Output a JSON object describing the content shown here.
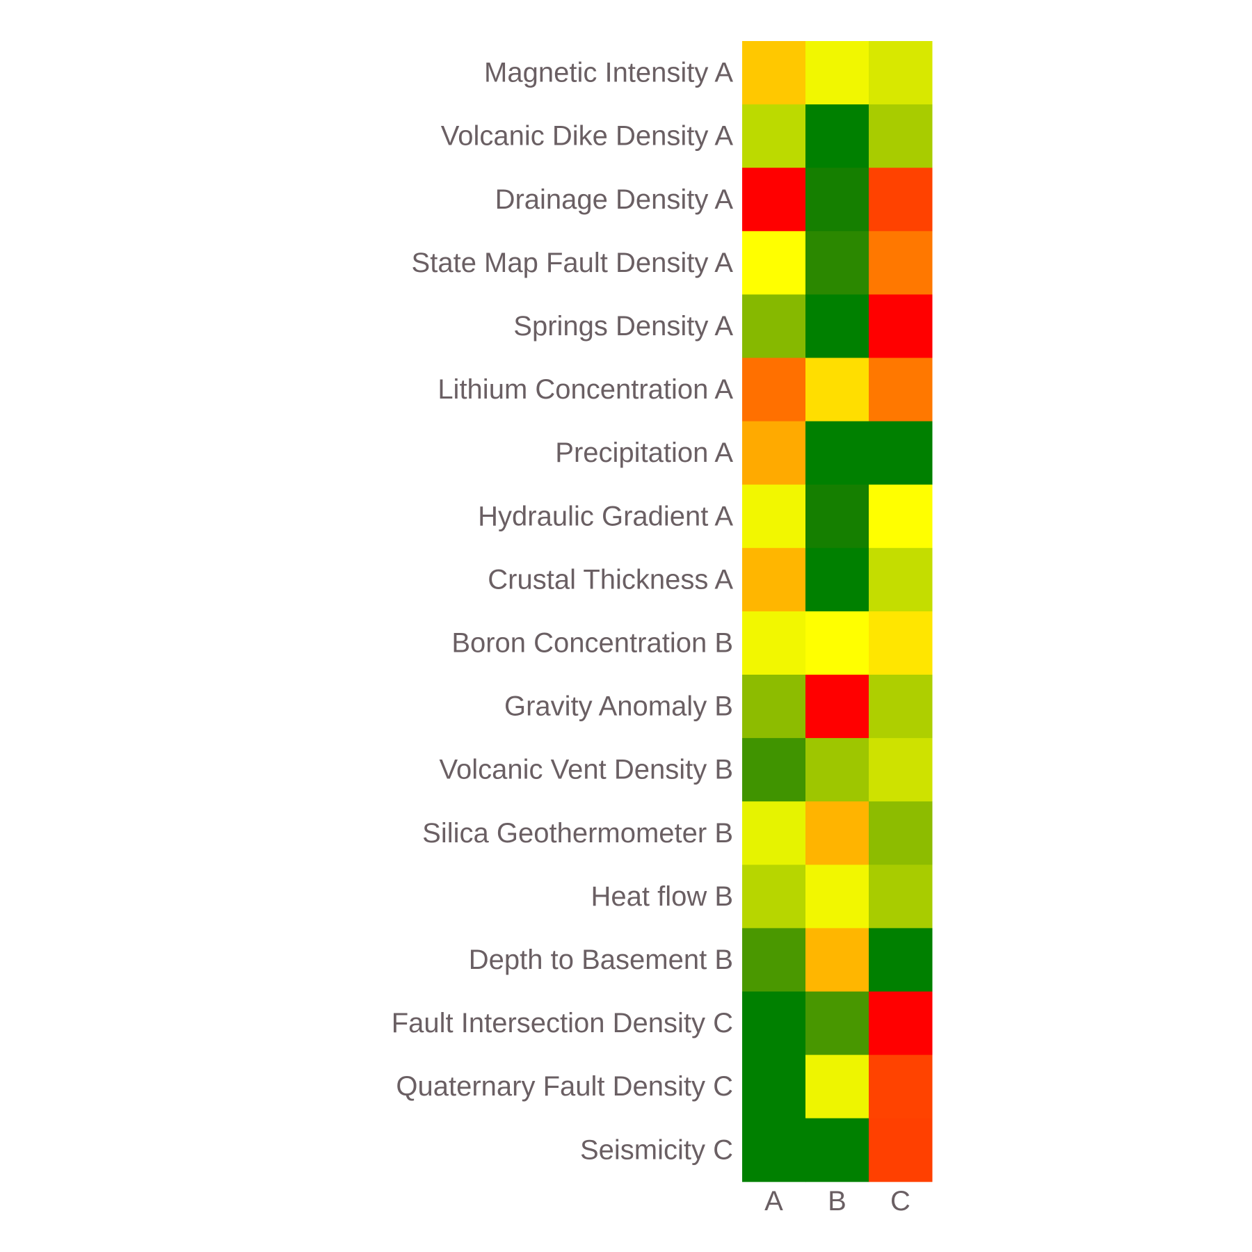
{
  "chart_data": {
    "type": "heatmap",
    "title": "",
    "xlabel": "",
    "ylabel": "",
    "legend": "none",
    "grid": false,
    "colorscale": "red-yellow-green",
    "x_categories": [
      "A",
      "B",
      "C"
    ],
    "y_categories": [
      "Magnetic Intensity A",
      "Volcanic Dike Density A",
      "Drainage Density A",
      "State Map Fault Density A",
      "Springs Density A",
      "Lithium Concentration A",
      "Precipitation A",
      "Hydraulic Gradient A",
      "Crustal Thickness A",
      "Boron Concentration B",
      "Gravity Anomaly B",
      "Volcanic Vent Density B",
      "Silica Geothermometer B",
      "Heat flow B",
      "Depth to Basement B",
      "Fault Intersection Density C",
      "Quaternary Fault Density C",
      "Seismicity C"
    ],
    "cell_colors": [
      [
        "#FFC800",
        "#F1F700",
        "#D8E800"
      ],
      [
        "#BCDA00",
        "#008000",
        "#A8CC00"
      ],
      [
        "#FF0000",
        "#157F00",
        "#FF4200"
      ],
      [
        "#FFFF00",
        "#2B8800",
        "#FF7800"
      ],
      [
        "#86B900",
        "#008000",
        "#FF0000"
      ],
      [
        "#FF7000",
        "#FFDE00",
        "#FF7800"
      ],
      [
        "#FFAA00",
        "#008000",
        "#008000"
      ],
      [
        "#F2F700",
        "#157F00",
        "#FFFF00"
      ],
      [
        "#FFB600",
        "#008000",
        "#C4DD00"
      ],
      [
        "#F2F700",
        "#FFFF00",
        "#FFE600"
      ],
      [
        "#8DBC00",
        "#FF0000",
        "#AECF00"
      ],
      [
        "#409400",
        "#9EC600",
        "#CEE200"
      ],
      [
        "#E6F300",
        "#FFB400",
        "#8DBC00"
      ],
      [
        "#B7D600",
        "#F2F700",
        "#A8CC00"
      ],
      [
        "#4A9800",
        "#FFB600",
        "#008000"
      ],
      [
        "#008000",
        "#489700",
        "#FF0000"
      ],
      [
        "#008000",
        "#EEF500",
        "#FF4300"
      ],
      [
        "#008000",
        "#008000",
        "#FF4000"
      ]
    ]
  }
}
